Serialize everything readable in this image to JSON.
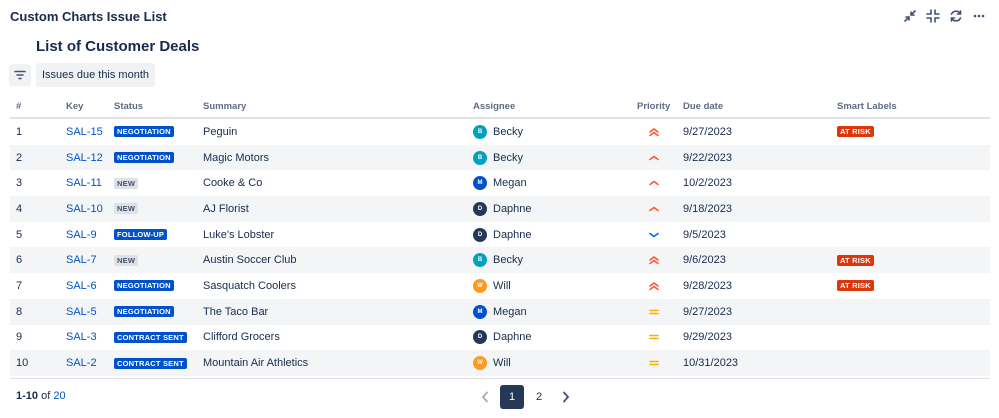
{
  "header": {
    "app_title": "Custom Charts Issue List",
    "page_title": "List of Customer Deals",
    "filter_chip": "Issues due this month"
  },
  "columns": {
    "num": "#",
    "key": "Key",
    "status": "Status",
    "summary": "Summary",
    "assignee": "Assignee",
    "priority": "Priority",
    "due": "Due date",
    "smart": "Smart Labels"
  },
  "rows": [
    {
      "num": "1",
      "key": "SAL-15",
      "status": "NEGOTIATION",
      "status_style": "blue",
      "summary": "Peguin",
      "assignee": "Becky",
      "initial": "B",
      "avatar_color": "#00a3bf",
      "priority": "highest",
      "due": "9/27/2023",
      "smart": "AT RISK"
    },
    {
      "num": "2",
      "key": "SAL-12",
      "status": "NEGOTIATION",
      "status_style": "blue",
      "summary": "Magic Motors",
      "assignee": "Becky",
      "initial": "B",
      "avatar_color": "#00a3bf",
      "priority": "high",
      "due": "9/22/2023",
      "smart": ""
    },
    {
      "num": "3",
      "key": "SAL-11",
      "status": "NEW",
      "status_style": "grey",
      "summary": "Cooke & Co",
      "assignee": "Megan",
      "initial": "M",
      "avatar_color": "#0052cc",
      "priority": "high",
      "due": "10/2/2023",
      "smart": ""
    },
    {
      "num": "4",
      "key": "SAL-10",
      "status": "NEW",
      "status_style": "grey",
      "summary": "AJ Florist",
      "assignee": "Daphne",
      "initial": "D",
      "avatar_color": "#253858",
      "priority": "high",
      "due": "9/18/2023",
      "smart": ""
    },
    {
      "num": "5",
      "key": "SAL-9",
      "status": "FOLLOW-UP",
      "status_style": "blue",
      "summary": "Luke's Lobster",
      "assignee": "Daphne",
      "initial": "D",
      "avatar_color": "#253858",
      "priority": "low",
      "due": "9/5/2023",
      "smart": ""
    },
    {
      "num": "6",
      "key": "SAL-7",
      "status": "NEW",
      "status_style": "grey",
      "summary": "Austin Soccer Club",
      "assignee": "Becky",
      "initial": "B",
      "avatar_color": "#00a3bf",
      "priority": "highest",
      "due": "9/6/2023",
      "smart": "AT RISK"
    },
    {
      "num": "7",
      "key": "SAL-6",
      "status": "NEGOTIATION",
      "status_style": "blue",
      "summary": "Sasquatch Coolers",
      "assignee": "Will",
      "initial": "W",
      "avatar_color": "#ff991f",
      "priority": "highest",
      "due": "9/28/2023",
      "smart": "AT RISK"
    },
    {
      "num": "8",
      "key": "SAL-5",
      "status": "NEGOTIATION",
      "status_style": "blue",
      "summary": "The Taco Bar",
      "assignee": "Megan",
      "initial": "M",
      "avatar_color": "#0052cc",
      "priority": "medium",
      "due": "9/27/2023",
      "smart": ""
    },
    {
      "num": "9",
      "key": "SAL-3",
      "status": "CONTRACT SENT",
      "status_style": "blue",
      "summary": "Clifford Grocers",
      "assignee": "Daphne",
      "initial": "D",
      "avatar_color": "#253858",
      "priority": "medium",
      "due": "9/29/2023",
      "smart": ""
    },
    {
      "num": "10",
      "key": "SAL-2",
      "status": "CONTRACT SENT",
      "status_style": "blue",
      "summary": "Mountain Air Athletics",
      "assignee": "Will",
      "initial": "W",
      "avatar_color": "#ff991f",
      "priority": "medium",
      "due": "10/31/2023",
      "smart": ""
    }
  ],
  "footer": {
    "range": "1-10",
    "of": "of",
    "total": "20",
    "pages": [
      "1",
      "2"
    ],
    "current_page": "1"
  },
  "colors": {
    "priority_high": "#ff5630",
    "priority_low": "#0065ff",
    "priority_medium": "#ffab00"
  }
}
